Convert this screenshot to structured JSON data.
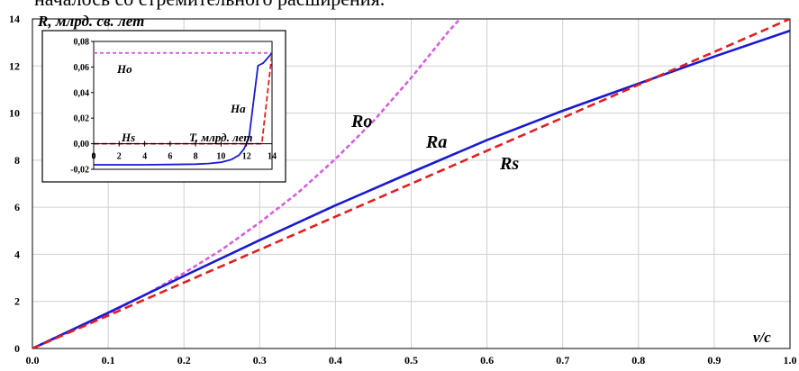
{
  "caption_fragment": "началось со стремительного расширения.",
  "chart_data": [
    {
      "type": "line",
      "title": "",
      "xlabel": "v/c",
      "ylabel": "R, млрд. св. лет",
      "xlim": [
        0,
        1
      ],
      "ylim": [
        0,
        14
      ],
      "x_ticks": [
        "0.0",
        "0.1",
        "0.2",
        "0.3",
        "0.4",
        "0.5",
        "0.6",
        "0.7",
        "0.8",
        "0.9",
        "1.0"
      ],
      "y_ticks": [
        "0",
        "2",
        "4",
        "6",
        "8",
        "10",
        "12",
        "14"
      ],
      "grid": true,
      "series": [
        {
          "name": "Ro",
          "color": "#d65ee0",
          "style": "dashed",
          "x": [
            0,
            0.05,
            0.1,
            0.15,
            0.2,
            0.25,
            0.3,
            0.35,
            0.4,
            0.45,
            0.5,
            0.55,
            0.57
          ],
          "y": [
            0,
            0.72,
            1.48,
            2.3,
            3.2,
            4.2,
            5.35,
            6.6,
            8.05,
            9.65,
            11.5,
            13.5,
            14.2
          ]
        },
        {
          "name": "Ra",
          "color": "#1a1ad0",
          "style": "solid",
          "x": [
            0,
            0.1,
            0.2,
            0.3,
            0.4,
            0.5,
            0.6,
            0.7,
            0.8,
            0.9,
            1.0
          ],
          "y": [
            0,
            1.52,
            3.08,
            4.6,
            6.08,
            7.48,
            8.85,
            10.1,
            11.25,
            12.4,
            13.5
          ]
        },
        {
          "name": "Rs",
          "color": "#e02020",
          "style": "dashed",
          "x": [
            0,
            0.1,
            0.2,
            0.3,
            0.4,
            0.5,
            0.6,
            0.7,
            0.8,
            0.9,
            1.0
          ],
          "y": [
            0,
            1.4,
            2.8,
            4.2,
            5.6,
            7.0,
            8.4,
            9.8,
            11.2,
            12.6,
            14.0
          ]
        }
      ]
    },
    {
      "type": "line",
      "title": "",
      "xlabel": "T, млрд. лет",
      "ylabel": "",
      "xlim": [
        0,
        14
      ],
      "ylim": [
        -0.02,
        0.08
      ],
      "x_ticks": [
        "0",
        "2",
        "4",
        "6",
        "8",
        "10",
        "12",
        "14"
      ],
      "y_ticks": [
        "0,08",
        "0,06",
        "0,04",
        "0,02",
        "0,00",
        "-0,02"
      ],
      "grid": false,
      "series": [
        {
          "name": "Ho",
          "color": "#d65ee0",
          "style": "dashed",
          "x": [
            0,
            14
          ],
          "y": [
            0.071,
            0.071
          ]
        },
        {
          "name": "Hs",
          "color": "#e02020",
          "style": "dashed",
          "x": [
            0,
            13.2,
            14
          ],
          "y": [
            0.0,
            0.0,
            0.071
          ]
        },
        {
          "name": "Ha",
          "color": "#1a1ad0",
          "style": "solid",
          "x": [
            0,
            2,
            4,
            6,
            8,
            9,
            10,
            10.8,
            11.4,
            11.8,
            12.2,
            12.9,
            13.3,
            14
          ],
          "y": [
            -0.0165,
            -0.0165,
            -0.0165,
            -0.0163,
            -0.016,
            -0.0155,
            -0.0145,
            -0.0125,
            -0.009,
            -0.004,
            0.005,
            0.061,
            0.063,
            0.071
          ]
        }
      ]
    }
  ]
}
